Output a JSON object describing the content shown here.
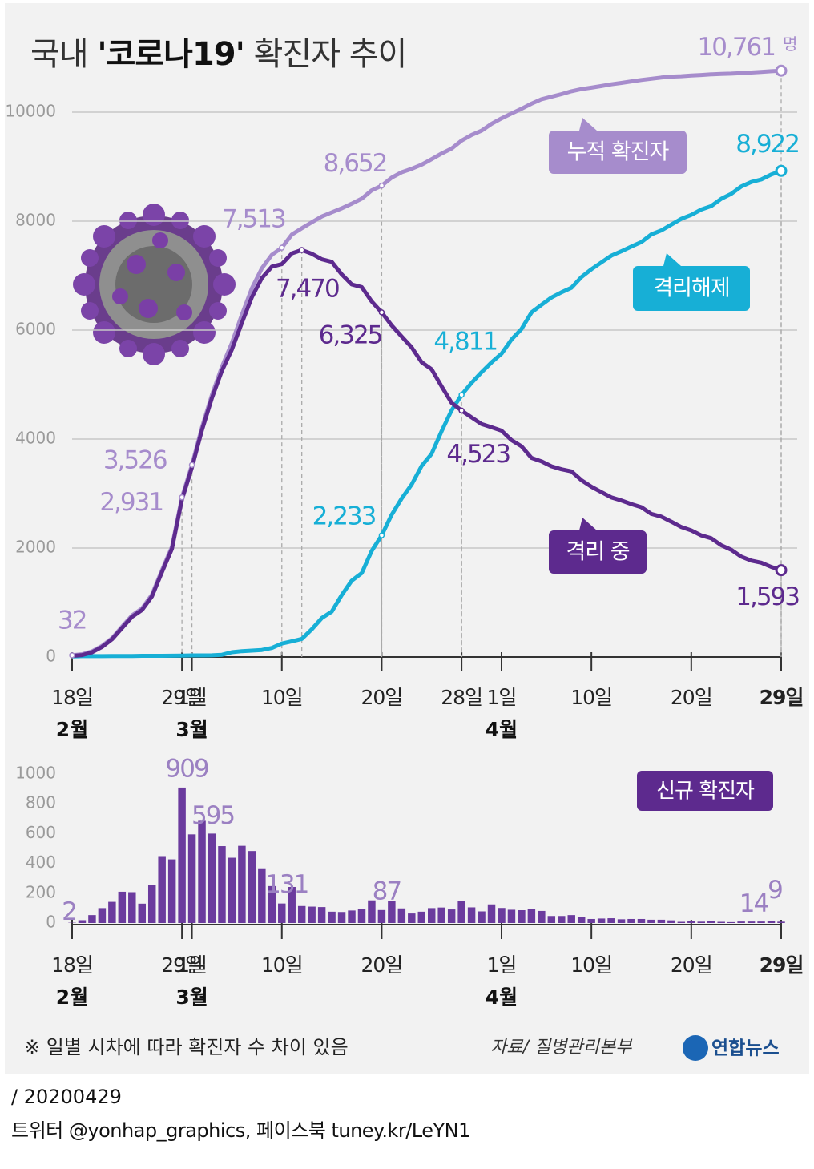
{
  "chart_data": [
    {
      "type": "line",
      "title": [
        "국내 ",
        "'코로나19'",
        " 확진자 추이"
      ],
      "unit": "명",
      "categories": [
        "18일",
        null,
        null,
        null,
        null,
        null,
        null,
        null,
        null,
        null,
        null,
        "29일",
        "1일",
        null,
        null,
        null,
        null,
        null,
        null,
        null,
        null,
        "10일",
        null,
        null,
        null,
        null,
        null,
        null,
        null,
        null,
        null,
        "20일",
        null,
        null,
        null,
        null,
        null,
        null,
        null,
        "28일",
        null,
        null,
        null,
        "1일",
        null,
        null,
        null,
        null,
        null,
        null,
        null,
        null,
        "10일",
        null,
        null,
        null,
        null,
        null,
        null,
        null,
        null,
        null,
        "20일",
        null,
        null,
        null,
        null,
        null,
        null,
        null,
        null,
        "29일"
      ],
      "months": [
        "2월",
        "3월",
        "4월"
      ],
      "series": [
        {
          "name": "누적 확진자",
          "color": "#a68ccc",
          "values": [
            32,
            51,
            104,
            204,
            346,
            556,
            763,
            893,
            1146,
            1595,
            2022,
            2931,
            3526,
            4212,
            4812,
            5328,
            5766,
            6284,
            6767,
            7134,
            7382,
            7513,
            7755,
            7869,
            7979,
            8086,
            8162,
            8236,
            8320,
            8413,
            8565,
            8652,
            8799,
            8897,
            8961,
            9037,
            9137,
            9241,
            9332,
            9478,
            9583,
            9661,
            9786,
            9887,
            9976,
            10062,
            10156,
            10237,
            10284,
            10331,
            10384,
            10423,
            10450,
            10480,
            10512,
            10537,
            10564,
            10591,
            10613,
            10635,
            10653,
            10661,
            10674,
            10683,
            10694,
            10702,
            10708,
            10718,
            10728,
            10738,
            10752,
            10761
          ],
          "value_labels": [
            "32",
            null,
            null,
            null,
            null,
            null,
            null,
            null,
            null,
            null,
            null,
            "2,931",
            "3,526",
            null,
            null,
            null,
            null,
            null,
            null,
            null,
            null,
            "7,513",
            null,
            null,
            null,
            null,
            null,
            null,
            null,
            null,
            null,
            "8,652",
            null,
            null,
            null,
            null,
            null,
            null,
            null,
            null,
            null,
            null,
            null,
            null,
            null,
            null,
            null,
            null,
            null,
            null,
            null,
            null,
            null,
            null,
            null,
            null,
            null,
            null,
            null,
            null,
            null,
            null,
            null,
            null,
            null,
            null,
            null,
            null,
            null,
            null,
            null,
            "10,761"
          ]
        },
        {
          "name": "격리해제",
          "color": "#17afd6",
          "values": [
            12,
            16,
            16,
            16,
            17,
            18,
            18,
            22,
            22,
            22,
            24,
            27,
            30,
            30,
            31,
            41,
            88,
            108,
            118,
            130,
            166,
            247,
            288,
            333,
            510,
            714,
            834,
            1137,
            1401,
            1540,
            1947,
            2233,
            2612,
            2909,
            3166,
            3507,
            3730,
            4144,
            4528,
            4811,
            5033,
            5228,
            5408,
            5567,
            5828,
            6021,
            6325,
            6463,
            6598,
            6694,
            6776,
            6973,
            7117,
            7243,
            7368,
            7447,
            7534,
            7616,
            7757,
            7829,
            7937,
            8042,
            8114,
            8213,
            8277,
            8411,
            8501,
            8635,
            8717,
            8764,
            8854,
            8922
          ],
          "value_labels": [
            null,
            null,
            null,
            null,
            null,
            null,
            null,
            null,
            null,
            null,
            null,
            null,
            null,
            null,
            null,
            null,
            null,
            null,
            null,
            null,
            null,
            null,
            null,
            null,
            null,
            null,
            null,
            null,
            null,
            null,
            null,
            "2,233",
            null,
            null,
            null,
            null,
            null,
            null,
            null,
            "4,811",
            null,
            null,
            null,
            null,
            null,
            null,
            null,
            null,
            null,
            null,
            null,
            null,
            null,
            null,
            null,
            null,
            null,
            null,
            null,
            null,
            null,
            null,
            null,
            null,
            null,
            null,
            null,
            null,
            null,
            null,
            null,
            "8,922"
          ]
        },
        {
          "name": "격리 중",
          "color": "#5d2a8e",
          "values": [
            20,
            35,
            87,
            186,
            327,
            533,
            738,
            863,
            1113,
            1561,
            1985,
            2888,
            3479,
            4160,
            4753,
            5255,
            5643,
            6134,
            6605,
            6954,
            7165,
            7212,
            7407,
            7470,
            7402,
            7300,
            7253,
            7024,
            6838,
            6789,
            6527,
            6325,
            6085,
            5884,
            5684,
            5410,
            5281,
            4966,
            4665,
            4523,
            4398,
            4275,
            4216,
            4155,
            3979,
            3867,
            3654,
            3591,
            3500,
            3445,
            3408,
            3246,
            3125,
            3026,
            2930,
            2873,
            2808,
            2750,
            2627,
            2576,
            2484,
            2385,
            2324,
            2233,
            2179,
            2051,
            1967,
            1843,
            1769,
            1731,
            1654,
            1593
          ],
          "value_labels": [
            null,
            null,
            null,
            null,
            null,
            null,
            null,
            null,
            null,
            null,
            null,
            null,
            null,
            null,
            null,
            null,
            null,
            null,
            null,
            null,
            null,
            null,
            null,
            "7,470",
            null,
            null,
            null,
            null,
            null,
            null,
            null,
            "6,325",
            null,
            null,
            null,
            null,
            null,
            null,
            null,
            "4,523",
            null,
            null,
            null,
            null,
            null,
            null,
            null,
            null,
            null,
            null,
            null,
            null,
            null,
            null,
            null,
            null,
            null,
            null,
            null,
            null,
            null,
            null,
            null,
            null,
            null,
            null,
            null,
            null,
            null,
            null,
            null,
            "1,593"
          ]
        }
      ],
      "ylim": [
        0,
        11000
      ],
      "yticks": [
        0,
        2000,
        4000,
        6000,
        8000,
        10000
      ],
      "grid": true
    },
    {
      "type": "bar",
      "title": "신규 확진자",
      "categories": [
        "18일",
        null,
        null,
        null,
        null,
        null,
        null,
        null,
        null,
        null,
        null,
        "29일",
        "1일",
        null,
        null,
        null,
        null,
        null,
        null,
        null,
        null,
        "10일",
        null,
        null,
        null,
        null,
        null,
        null,
        null,
        null,
        null,
        "20일",
        null,
        null,
        null,
        null,
        null,
        null,
        null,
        null,
        null,
        null,
        null,
        "1일",
        null,
        null,
        null,
        null,
        null,
        null,
        null,
        null,
        "10일",
        null,
        null,
        null,
        null,
        null,
        null,
        null,
        null,
        null,
        "20일",
        null,
        null,
        null,
        null,
        null,
        null,
        null,
        null,
        "29일"
      ],
      "months": [
        "2월",
        "3월",
        "4월"
      ],
      "color": "#6b3b9e",
      "values": [
        2,
        19,
        53,
        100,
        142,
        210,
        207,
        130,
        253,
        449,
        427,
        909,
        595,
        686,
        600,
        516,
        438,
        518,
        483,
        367,
        248,
        131,
        242,
        114,
        110,
        107,
        76,
        74,
        84,
        93,
        152,
        87,
        147,
        98,
        64,
        76,
        100,
        104,
        91,
        146,
        105,
        78,
        125,
        101,
        89,
        86,
        94,
        81,
        47,
        47,
        53,
        39,
        27,
        30,
        32,
        25,
        27,
        27,
        22,
        22,
        18,
        8,
        13,
        9,
        11,
        8,
        6,
        10,
        10,
        10,
        14,
        9
      ],
      "value_labels": [
        "2",
        null,
        null,
        null,
        null,
        null,
        null,
        null,
        null,
        null,
        null,
        "909",
        "595",
        null,
        null,
        null,
        null,
        null,
        null,
        null,
        null,
        "131",
        null,
        null,
        null,
        null,
        null,
        null,
        null,
        null,
        null,
        "87",
        null,
        null,
        null,
        null,
        null,
        null,
        null,
        null,
        null,
        null,
        null,
        null,
        null,
        null,
        null,
        null,
        null,
        null,
        null,
        null,
        null,
        null,
        null,
        null,
        null,
        null,
        null,
        null,
        null,
        null,
        null,
        null,
        null,
        null,
        null,
        null,
        null,
        null,
        "14",
        "9"
      ],
      "ylim": [
        0,
        1000
      ],
      "yticks": [
        0,
        200,
        400,
        600,
        800,
        1000
      ],
      "grid": false
    }
  ],
  "note": "※ 일별 시차에 따라 확진자 수 차이 있음",
  "source": "자료/ 질병관리본부",
  "brand": "연합뉴스",
  "date": "/ 20200429",
  "social": "트위터 @yonhap_graphics, 페이스북 tuney.kr/LeYN1"
}
